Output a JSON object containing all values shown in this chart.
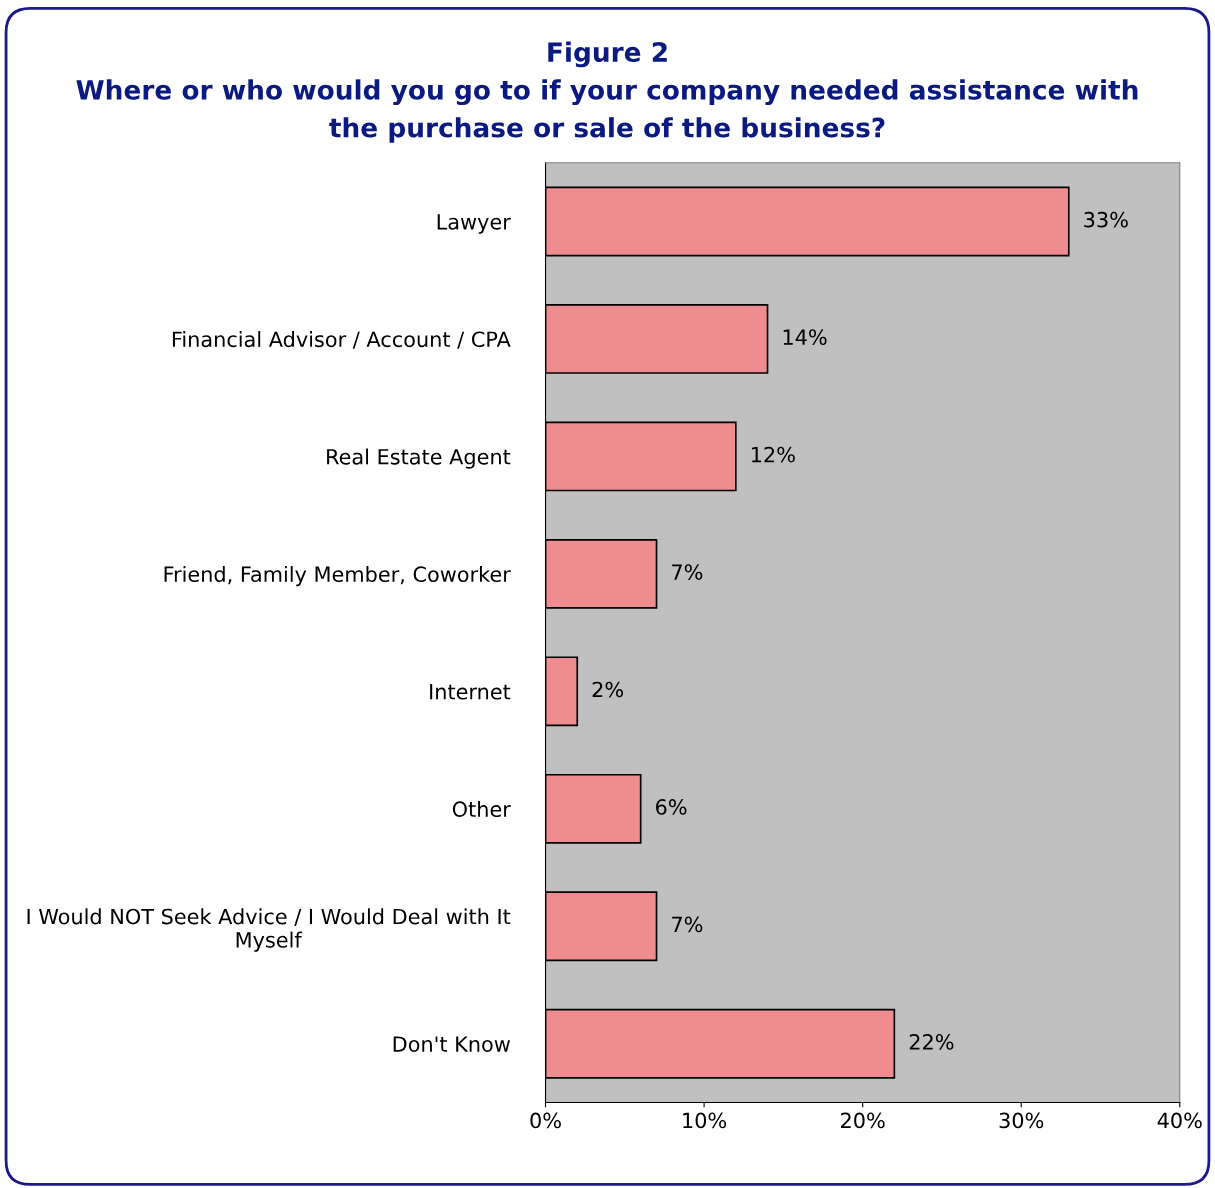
{
  "chart_data": {
    "type": "bar",
    "orientation": "horizontal",
    "title": "Figure 2\nWhere or who would you go to if your company needed assistance with\nthe purchase or sale of the business?",
    "categories": [
      "Lawyer",
      "Financial Advisor / Account / CPA",
      "Real Estate Agent",
      "Friend, Family Member, Coworker",
      "Internet",
      "Other",
      "I Would NOT Seek Advice / I Would Deal with It\nMyself",
      "Don't Know"
    ],
    "values": [
      33,
      14,
      12,
      7,
      2,
      6,
      7,
      22
    ],
    "value_labels": [
      "33%",
      "14%",
      "12%",
      "7%",
      "2%",
      "6%",
      "7%",
      "22%"
    ],
    "color": "#ee8c90",
    "xlim": [
      0,
      40
    ],
    "xticks": [
      {
        "value": 0,
        "label": "0%"
      },
      {
        "value": 10,
        "label": "10%"
      },
      {
        "value": 20,
        "label": "20%"
      },
      {
        "value": 30,
        "label": "30%"
      },
      {
        "value": 40,
        "label": "40%"
      }
    ],
    "grid": false
  }
}
